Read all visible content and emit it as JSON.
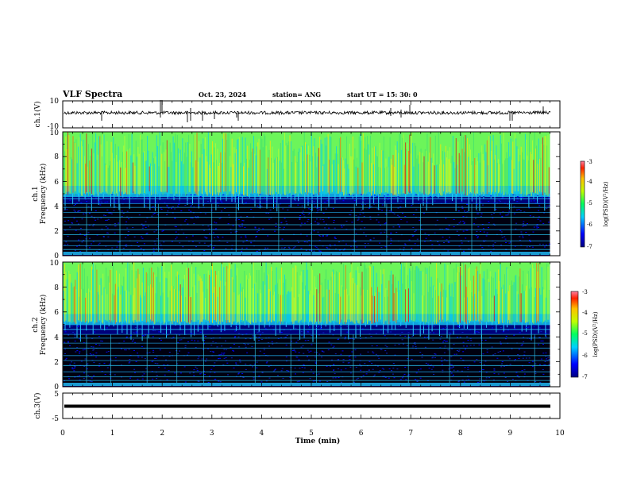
{
  "header": {
    "title": "VLF Spectra",
    "date": "Oct. 23, 2024",
    "station": "station= ANG",
    "start": "start  UT  =   15: 30: 0"
  },
  "chart_data": [
    {
      "type": "line",
      "panel": "ch1-waveform",
      "ylabel": "ch.1(V)",
      "ylim": [
        -10,
        10
      ],
      "yticks": [
        "10",
        "-10"
      ],
      "xlim": [
        0,
        10
      ],
      "series_color": "#000000"
    },
    {
      "type": "heatmap",
      "panel": "ch1-spectrogram",
      "ylabel_line1": "ch.1",
      "ylabel_line2": "Frequency (kHz)",
      "ylim": [
        0,
        10
      ],
      "yticks": [
        "0",
        "2",
        "4",
        "6",
        "8",
        "10"
      ],
      "xlim": [
        0,
        9.8
      ],
      "colorbar": {
        "label": "log(PSD)(V²/Hz)",
        "range": [
          -7,
          -3
        ],
        "ticks": [
          "-3",
          "-4",
          "-5",
          "-6",
          "-7"
        ]
      }
    },
    {
      "type": "heatmap",
      "panel": "ch2-spectrogram",
      "ylabel_line1": "ch.2",
      "ylabel_line2": "Frequency (kHz)",
      "ylim": [
        0,
        10
      ],
      "yticks": [
        "0",
        "2",
        "4",
        "6",
        "8",
        "10"
      ],
      "xlim": [
        0,
        9.8
      ],
      "colorbar": {
        "label": "log(PSD)(V²/Hz)",
        "range": [
          -7,
          -3
        ],
        "ticks": [
          "-3",
          "-4",
          "-5",
          "-6",
          "-7"
        ]
      }
    },
    {
      "type": "line",
      "panel": "ch3-waveform",
      "ylabel": "ch.3(V)",
      "ylim": [
        -5,
        5
      ],
      "yticks": [
        "5",
        "-5"
      ],
      "xlim": [
        0,
        10
      ],
      "series_color": "#000000"
    }
  ],
  "xaxis": {
    "label": "Time (min)",
    "range": [
      0,
      10
    ],
    "ticks": [
      "0",
      "1",
      "2",
      "3",
      "4",
      "5",
      "6",
      "7",
      "8",
      "9",
      "10"
    ]
  }
}
